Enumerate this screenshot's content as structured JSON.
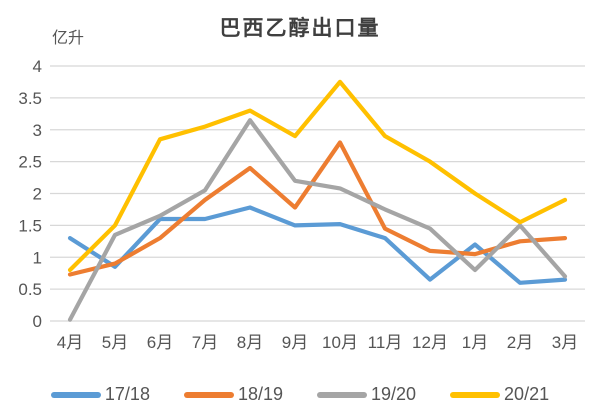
{
  "chart_data": {
    "type": "line",
    "title": "巴西乙醇出口量",
    "unit": "亿升",
    "categories": [
      "4月",
      "5月",
      "6月",
      "7月",
      "8月",
      "9月",
      "10月",
      "11月",
      "12月",
      "1月",
      "2月",
      "3月"
    ],
    "series": [
      {
        "name": "17/18",
        "color": "#5B9BD5",
        "values": [
          1.3,
          0.85,
          1.6,
          1.6,
          1.78,
          1.5,
          1.52,
          1.3,
          0.65,
          1.2,
          0.6,
          0.65
        ]
      },
      {
        "name": "18/19",
        "color": "#ED7D31",
        "values": [
          0.73,
          0.9,
          1.3,
          1.9,
          2.4,
          1.78,
          2.8,
          1.45,
          1.1,
          1.05,
          1.25,
          1.3
        ]
      },
      {
        "name": "19/20",
        "color": "#A5A5A5",
        "values": [
          0.02,
          1.35,
          1.65,
          2.05,
          3.15,
          2.2,
          2.08,
          1.75,
          1.45,
          0.8,
          1.5,
          0.7
        ]
      },
      {
        "name": "20/21",
        "color": "#FFC000",
        "values": [
          0.8,
          1.5,
          2.85,
          3.05,
          3.3,
          2.9,
          3.75,
          2.9,
          2.5,
          2.0,
          1.55,
          1.9
        ]
      }
    ],
    "xlabel": "",
    "ylabel": "",
    "ylim": [
      0,
      4
    ],
    "ytick_step": 0.5,
    "yticks": [
      0,
      0.5,
      1,
      1.5,
      2,
      2.5,
      3,
      3.5,
      4
    ],
    "grid": "horizontal",
    "grid_color": "#D8D8D8",
    "tick_label_color": "#555555",
    "legend_position": "bottom"
  }
}
